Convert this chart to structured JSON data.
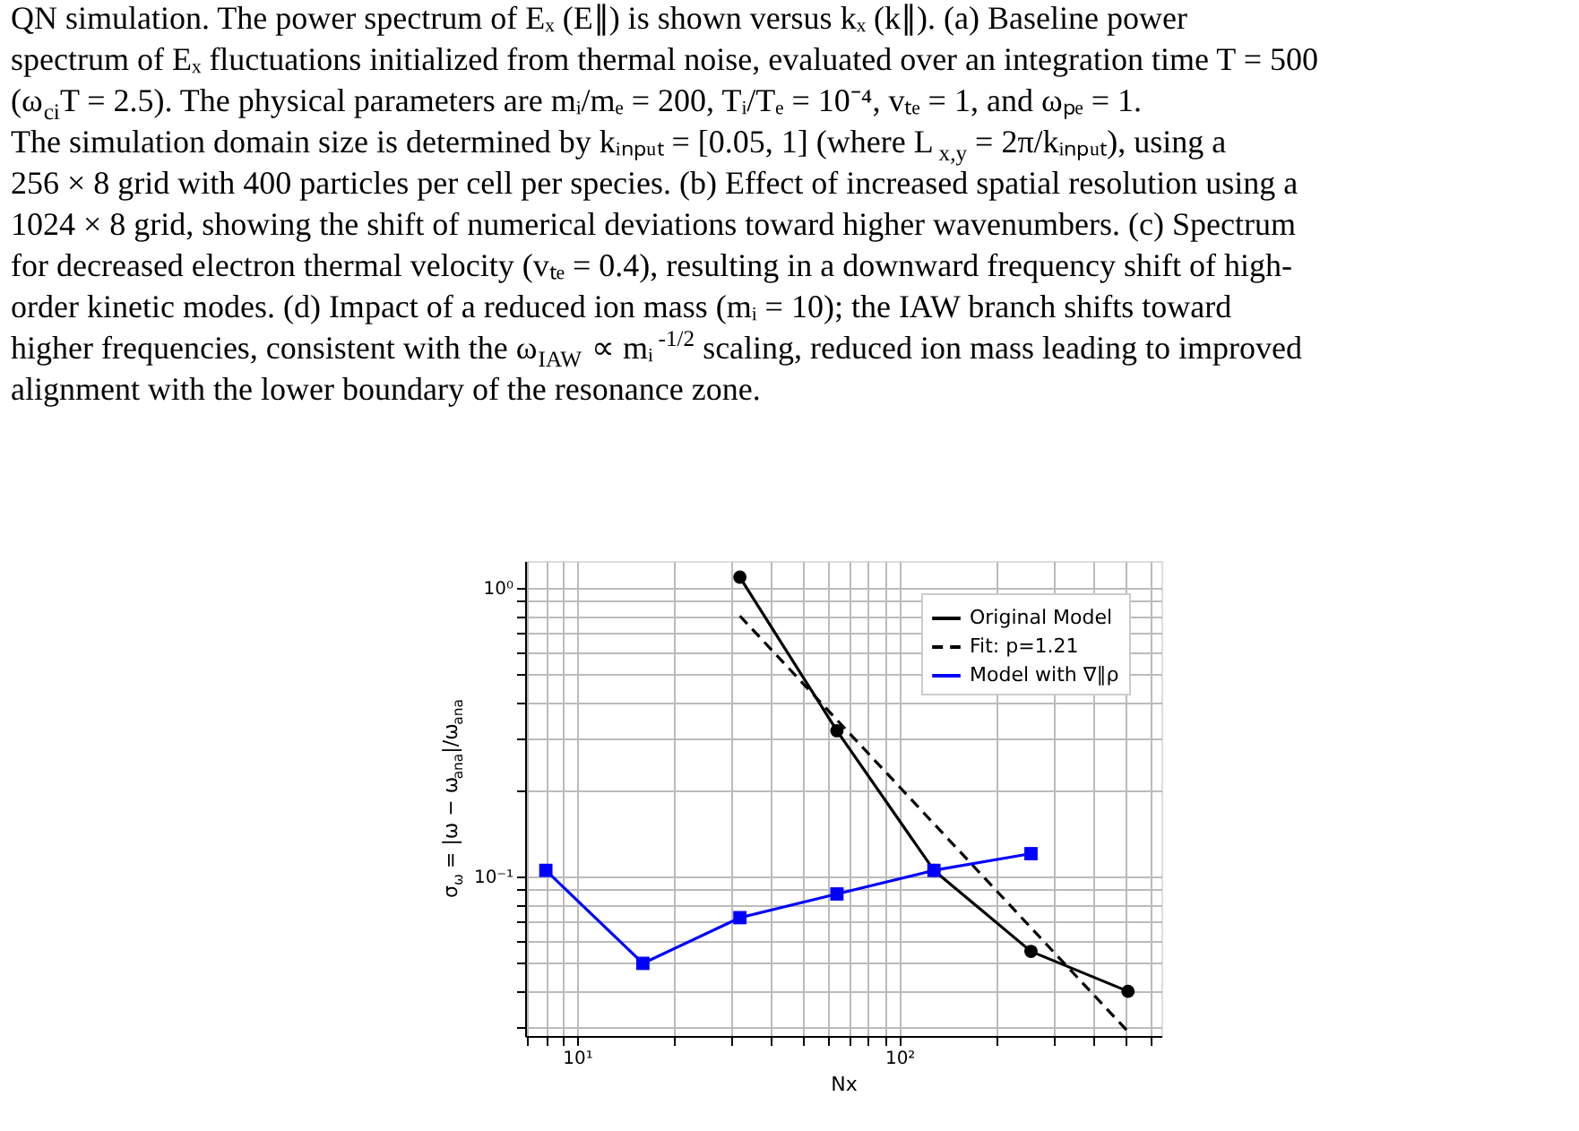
{
  "chart_data": {
    "type": "line",
    "annotations": [
      "QN simulation. The power spectrum of Eₓ (E∥) is shown versus kₓ (k∥). (a) Baseline power",
      "spectrum of Eₓ fluctuations initialized from thermal noise, evaluated over an integration time T = 500",
      "(ω$_{ci}$T = 2.5). The physical parameters are mᵢ/mₑ = 200, Tᵢ/Tₑ = 10⁻⁴, vₜₑ = 1, and ωₚₑ = 1.",
      "The simulation domain size is determined by kᵢₙₚᵤₜ = [0.05, 1] (where L$_{x,y}$ = 2π/kᵢₙₚᵤₜ), using a",
      "256 × 8 grid with 400 particles per cell per species. (b) Effect of increased spatial resolution using a",
      "1024 × 8 grid, showing the shift of numerical deviations toward higher wavenumbers. (c) Spectrum",
      "for decreased electron thermal velocity (vₜₑ = 0.4), resulting in a downward frequency shift of high-",
      "order kinetic modes. (d) Impact of a reduced ion mass (mᵢ = 10); the IAW branch shifts toward",
      "higher frequencies, consistent with the ω$_{IAW}$ ∝ mᵢ$^{-1/2}$ scaling, reduced ion mass leading to improved",
      "alignment with the lower boundary of the resonance zone."
    ],
    "xlabel": "Nx",
    "ylabel": "σ$_{ω}$ = |ω − ω$_{ana}$|/ω$_{ana}$",
    "log": "xy",
    "grid": true,
    "legend": "top right",
    "xlim": [
      6.9,
      650
    ],
    "ylim": [
      0.028,
      1.24
    ],
    "xticks": [
      {
        "value": 7,
        "label": null
      },
      {
        "value": 8,
        "label": null
      },
      {
        "value": 9,
        "label": null
      },
      {
        "value": 10,
        "label": "10¹"
      },
      {
        "value": 20,
        "label": null
      },
      {
        "value": 30,
        "label": null
      },
      {
        "value": 40,
        "label": null
      },
      {
        "value": 50,
        "label": null
      },
      {
        "value": 60,
        "label": null
      },
      {
        "value": 70,
        "label": null
      },
      {
        "value": 80,
        "label": null
      },
      {
        "value": 90,
        "label": null
      },
      {
        "value": 100,
        "label": "10²"
      },
      {
        "value": 200,
        "label": null
      },
      {
        "value": 300,
        "label": null
      },
      {
        "value": 400,
        "label": null
      },
      {
        "value": 500,
        "label": null
      },
      {
        "value": 600,
        "label": null
      }
    ],
    "yticks": [
      {
        "value": 0.03,
        "label": null
      },
      {
        "value": 0.04,
        "label": null
      },
      {
        "value": 0.05,
        "label": null
      },
      {
        "value": 0.06,
        "label": null
      },
      {
        "value": 0.07,
        "label": null
      },
      {
        "value": 0.08,
        "label": null
      },
      {
        "value": 0.09,
        "label": null
      },
      {
        "value": 0.1,
        "label": "10⁻¹"
      },
      {
        "value": 0.2,
        "label": null
      },
      {
        "value": 0.3,
        "label": null
      },
      {
        "value": 0.4,
        "label": null
      },
      {
        "value": 0.5,
        "label": null
      },
      {
        "value": 0.6,
        "label": null
      },
      {
        "value": 0.7,
        "label": null
      },
      {
        "value": 0.8,
        "label": null
      },
      {
        "value": 0.9,
        "label": null
      },
      {
        "value": 1,
        "label": "10⁰"
      }
    ],
    "series": [
      {
        "name": "Original Model",
        "color": "#000000",
        "marker": "circle",
        "line_style": "solid",
        "x": [
          32,
          64,
          128,
          256,
          512
        ],
        "values": [
          1.09,
          0.32,
          0.105,
          0.055,
          0.04
        ]
      },
      {
        "name": "Fit: p=1.21",
        "color": "#000000",
        "marker": "none",
        "line_style": "dashed",
        "x": [
          32,
          512
        ],
        "values": [
          0.8,
          0.029
        ]
      },
      {
        "name": "Model with ∇∥ρ",
        "color": "#0000ff",
        "marker": "square",
        "line_style": "solid",
        "x": [
          8,
          16,
          32,
          64,
          128,
          256
        ],
        "values": [
          0.105,
          0.05,
          0.072,
          0.087,
          0.105,
          0.12
        ]
      }
    ]
  }
}
